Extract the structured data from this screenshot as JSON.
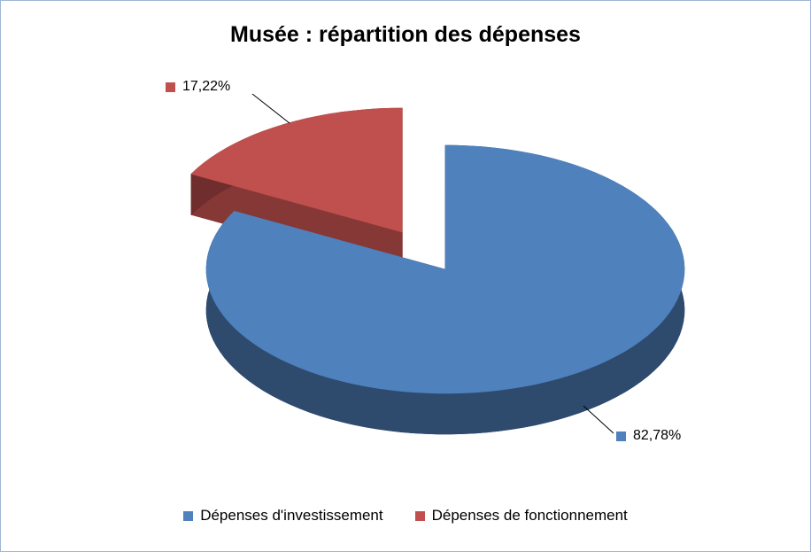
{
  "chart_data": {
    "type": "pie",
    "effect": "3d-exploded",
    "title": "Musée : répartition des dépenses",
    "labels": [
      "Dépenses d'investissement",
      "Dépenses de fonctionnement"
    ],
    "values": [
      82.78,
      17.22
    ],
    "value_labels": [
      "82,78%",
      "17,22%"
    ],
    "colors": [
      "#4F81BD",
      "#C0504D"
    ],
    "explode": [
      0,
      0.35
    ],
    "legend_position": "bottom"
  }
}
